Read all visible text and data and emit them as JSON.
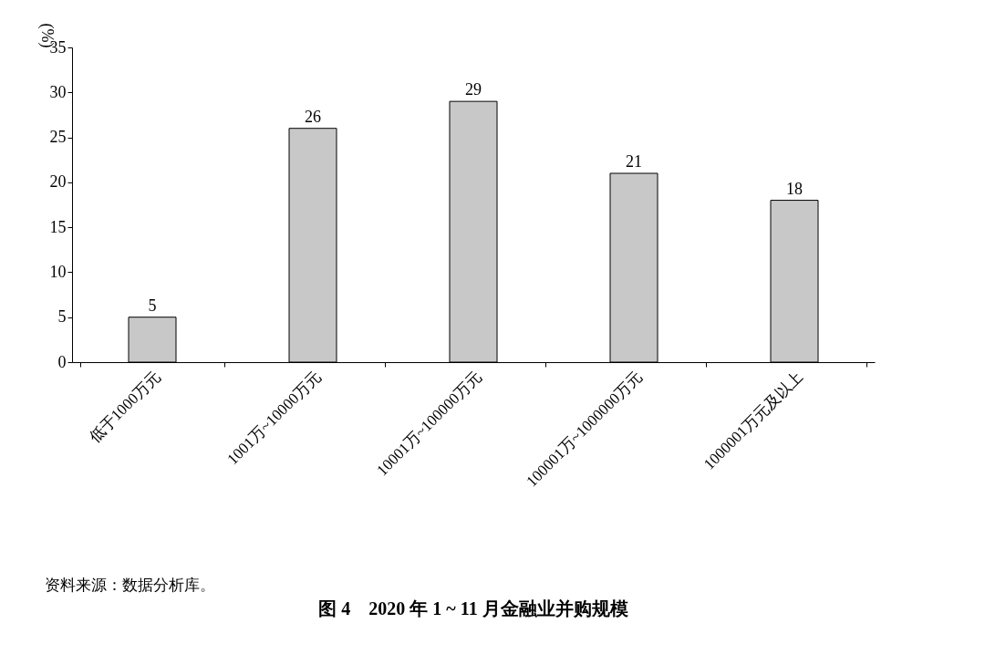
{
  "chart_data": {
    "type": "bar",
    "title": "图 4　2020 年 1 ~ 11 月金融业并购规模",
    "ylabel": "(%)",
    "categories": [
      "低于1000万元",
      "1001万~10000万元",
      "10001万~100000万元",
      "100001万~1000000万元",
      "1000001万元及以上"
    ],
    "values": [
      5,
      26,
      29,
      21,
      18
    ],
    "color": "#c8c8c8",
    "ylim": [
      0,
      35
    ],
    "yticks": [
      0,
      5,
      10,
      15,
      20,
      25,
      30,
      35
    ],
    "grid": false,
    "data_labels": true,
    "annotations": [
      "资料来源：数据分析库。"
    ]
  }
}
